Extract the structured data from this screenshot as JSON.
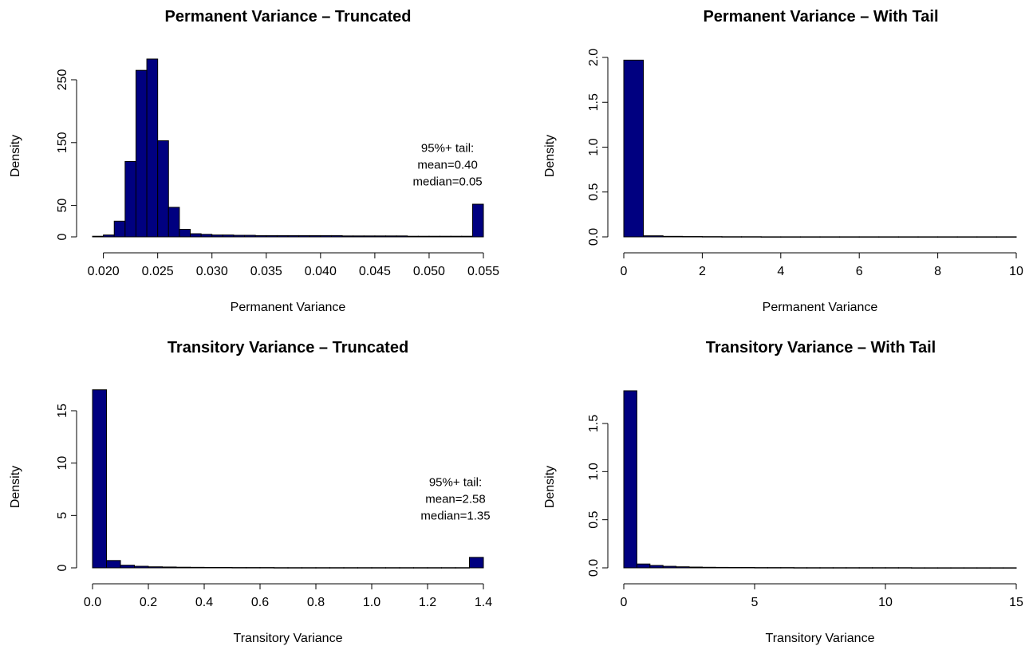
{
  "colors": {
    "bar_fill": "#000080",
    "bar_stroke": "#000000",
    "background": "#ffffff"
  },
  "chart_data": [
    {
      "type": "bar",
      "title": "Permanent Variance – Truncated",
      "xlabel": "Permanent Variance",
      "ylabel": "Density",
      "xlim": [
        0.019,
        0.055
      ],
      "ylim": [
        0,
        280
      ],
      "x_ticks": [
        0.02,
        0.025,
        0.03,
        0.035,
        0.04,
        0.045,
        0.05,
        0.055
      ],
      "x_tick_labels": [
        "0.020",
        "0.025",
        "0.030",
        "0.035",
        "0.040",
        "0.045",
        "0.050",
        "0.055"
      ],
      "y_ticks": [
        0,
        50,
        150,
        250
      ],
      "y_tick_labels": [
        "0",
        "50",
        "150",
        "250"
      ],
      "bin_edges": [
        0.019,
        0.02,
        0.021,
        0.022,
        0.023,
        0.024,
        0.025,
        0.026,
        0.027,
        0.028,
        0.029,
        0.03,
        0.031,
        0.032,
        0.033,
        0.034,
        0.035,
        0.036,
        0.037,
        0.038,
        0.039,
        0.04,
        0.041,
        0.042,
        0.043,
        0.044,
        0.045,
        0.046,
        0.047,
        0.048,
        0.049,
        0.05,
        0.051,
        0.052,
        0.053,
        0.054,
        0.055
      ],
      "values": [
        1,
        3,
        25,
        120,
        265,
        283,
        153,
        47,
        12,
        5,
        4,
        3,
        3,
        2.5,
        2.5,
        2,
        2,
        2,
        2,
        2,
        2,
        2,
        2,
        1.5,
        1.5,
        1.5,
        1.5,
        1.5,
        1.5,
        1,
        1,
        1,
        1,
        1,
        1,
        52
      ],
      "annotation": [
        "95%+ tail:",
        "mean=0.40",
        "median=0.05"
      ],
      "annotation_at": [
        0.0517,
        135
      ]
    },
    {
      "type": "bar",
      "title": "Permanent Variance – With Tail",
      "xlabel": "Permanent Variance",
      "ylabel": "Density",
      "xlim": [
        0,
        10
      ],
      "ylim": [
        0,
        2.0
      ],
      "x_ticks": [
        0,
        2,
        4,
        6,
        8,
        10
      ],
      "x_tick_labels": [
        "0",
        "2",
        "4",
        "6",
        "8",
        "10"
      ],
      "y_ticks": [
        0.0,
        0.5,
        1.0,
        1.5,
        2.0
      ],
      "y_tick_labels": [
        "0.0",
        "0.5",
        "1.0",
        "1.5",
        "2.0"
      ],
      "bin_edges": [
        0,
        0.5,
        1.0,
        1.5,
        2.0,
        2.5,
        3.0,
        3.5,
        4.0,
        4.5,
        5.0,
        5.5,
        6.0,
        6.5,
        7.0,
        7.5,
        8.0,
        8.5,
        9.0,
        9.5,
        10.0
      ],
      "values": [
        1.97,
        0.012,
        0.006,
        0.004,
        0.003,
        0.002,
        0.002,
        0.001,
        0.001,
        0.001,
        0.001,
        0.001,
        0.001,
        0.001,
        0.001,
        0.001,
        0.001,
        0.001,
        0.001,
        0.001
      ]
    },
    {
      "type": "bar",
      "title": "Transitory Variance – Truncated",
      "xlabel": "Transitory Variance",
      "ylabel": "Density",
      "xlim": [
        0,
        1.4
      ],
      "ylim": [
        0,
        17
      ],
      "x_ticks": [
        0.0,
        0.2,
        0.4,
        0.6,
        0.8,
        1.0,
        1.2,
        1.4
      ],
      "x_tick_labels": [
        "0.0",
        "0.2",
        "0.4",
        "0.6",
        "0.8",
        "1.0",
        "1.2",
        "1.4"
      ],
      "y_ticks": [
        0,
        5,
        10,
        15
      ],
      "y_tick_labels": [
        "0",
        "5",
        "10",
        "15"
      ],
      "bin_edges": [
        0,
        0.05,
        0.1,
        0.15,
        0.2,
        0.25,
        0.3,
        0.35,
        0.4,
        0.45,
        0.5,
        0.55,
        0.6,
        0.65,
        0.7,
        0.75,
        0.8,
        0.85,
        0.9,
        0.95,
        1.0,
        1.05,
        1.1,
        1.15,
        1.2,
        1.25,
        1.3,
        1.35,
        1.4
      ],
      "values": [
        17,
        0.7,
        0.25,
        0.15,
        0.1,
        0.08,
        0.06,
        0.05,
        0.04,
        0.04,
        0.03,
        0.03,
        0.03,
        0.02,
        0.02,
        0.02,
        0.02,
        0.02,
        0.02,
        0.02,
        0.02,
        0.02,
        0.02,
        0.02,
        0.02,
        0.02,
        0.02,
        1.0
      ],
      "annotation": [
        "95%+ tail:",
        "mean=2.58",
        "median=1.35"
      ],
      "annotation_at": [
        1.3,
        7.8
      ]
    },
    {
      "type": "bar",
      "title": "Transitory Variance – With Tail",
      "xlabel": "Transitory Variance",
      "ylabel": "Density",
      "xlim": [
        0,
        15
      ],
      "ylim": [
        0,
        1.85
      ],
      "x_ticks": [
        0,
        5,
        10,
        15
      ],
      "x_tick_labels": [
        "0",
        "5",
        "10",
        "15"
      ],
      "y_ticks": [
        0.0,
        0.5,
        1.0,
        1.5
      ],
      "y_tick_labels": [
        "0.0",
        "0.5",
        "1.0",
        "1.5"
      ],
      "bin_edges": [
        0,
        0.5,
        1.0,
        1.5,
        2.0,
        2.5,
        3.0,
        3.5,
        4.0,
        4.5,
        5.0,
        5.5,
        6.0,
        6.5,
        7.0,
        7.5,
        8.0,
        8.5,
        9.0,
        9.5,
        10.0,
        10.5,
        11.0,
        11.5,
        12.0,
        12.5,
        13.0,
        13.5,
        14.0,
        14.5,
        15.0
      ],
      "values": [
        1.84,
        0.04,
        0.025,
        0.016,
        0.011,
        0.008,
        0.006,
        0.005,
        0.004,
        0.004,
        0.003,
        0.003,
        0.003,
        0.002,
        0.002,
        0.002,
        0.002,
        0.002,
        0.002,
        0.002,
        0.002,
        0.002,
        0.001,
        0.001,
        0.001,
        0.001,
        0.001,
        0.001,
        0.001,
        0.001
      ]
    }
  ]
}
